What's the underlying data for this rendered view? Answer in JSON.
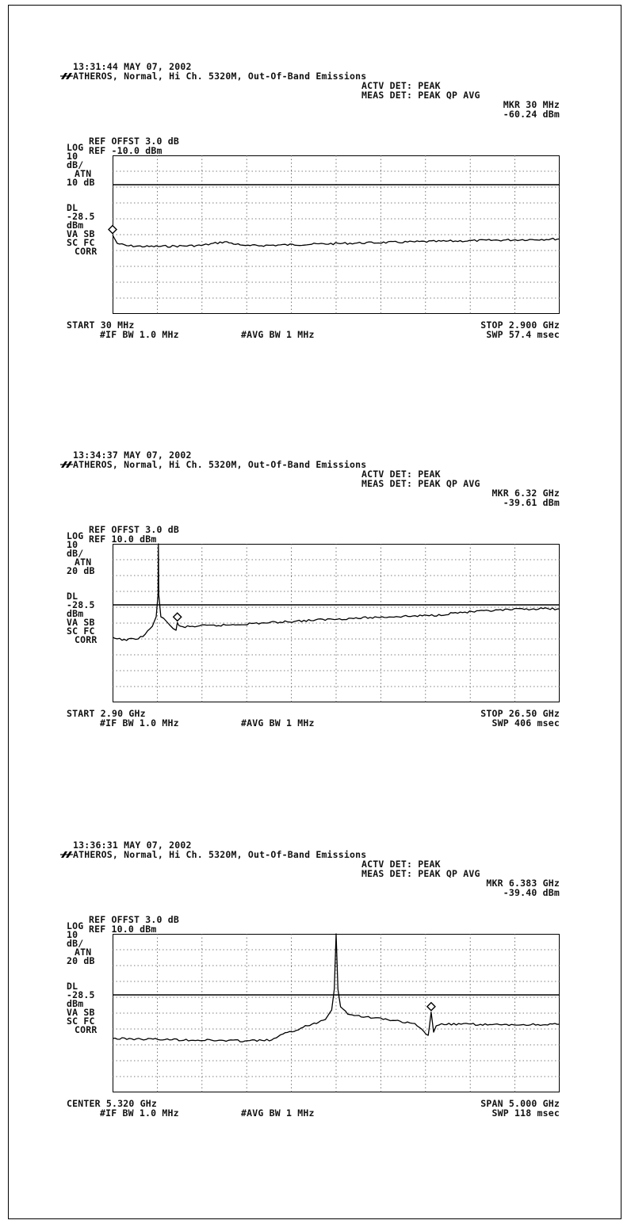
{
  "chart_data": [
    {
      "type": "line",
      "timestamp": "13:31:44 MAY 07, 2002",
      "title": "ATHEROS, Normal, Hi Ch. 5320M, Out-Of-Band Emissions",
      "actv_det": "ACTV DET: PEAK",
      "meas_det": "MEAS DET: PEAK QP AVG",
      "marker_freq": "MKR 30 MHz",
      "marker_level": "-60.24 dBm",
      "ref_offset": "REF OFFST 3.0 dB",
      "ref_level": "REF -10.0 dBm",
      "left_labels": [
        "LOG",
        "10",
        "dB/",
        "ATN",
        "10 dB",
        "DL",
        "-28.5",
        "dBm",
        "VA SB",
        "SC FC",
        "CORR"
      ],
      "x_start_label": "START 30 MHz",
      "x_stop_label": "STOP 2.900 GHz",
      "if_bw": "#IF BW 1.0 MHz",
      "avg_bw": "#AVG BW 1 MHz",
      "sweep": "SWP 57.4 msec",
      "ref_dbm": -10,
      "db_per_div": 10,
      "display_line_dbm": -28.5,
      "x_range_mhz": [
        30,
        2900
      ],
      "grid": true,
      "marker": {
        "x_mhz": 30,
        "y_dbm": -60.24
      },
      "series": [
        {
          "x": [
            30,
            60,
            120,
            250,
            400,
            600,
            750,
            850,
            900,
            1000,
            1200,
            1400,
            1600,
            1800,
            2000,
            2200,
            2400,
            2600,
            2800,
            2900
          ],
          "y": [
            -60.2,
            -65.5,
            -67.0,
            -67.5,
            -67.3,
            -66.8,
            -64.5,
            -66.5,
            -67.0,
            -66.8,
            -66.3,
            -65.8,
            -65.3,
            -64.9,
            -64.5,
            -64.1,
            -63.7,
            -63.3,
            -62.9,
            -62.7
          ]
        }
      ]
    },
    {
      "type": "line",
      "timestamp": "13:34:37 MAY 07, 2002",
      "title": "ATHEROS, Normal, Hi Ch. 5320M, Out-Of-Band Emissions",
      "actv_det": "ACTV DET: PEAK",
      "meas_det": "MEAS DET: PEAK QP AVG",
      "marker_freq": "MKR 6.32 GHz",
      "marker_level": "-39.61 dBm",
      "ref_offset": "REF OFFST 3.0 dB",
      "ref_level": "REF 10.0 dBm",
      "left_labels": [
        "LOG",
        "10",
        "dB/",
        "ATN",
        "20 dB",
        "DL",
        "-28.5",
        "dBm",
        "VA SB",
        "SC FC",
        "CORR"
      ],
      "x_start_label": "START 2.90 GHz",
      "x_stop_label": "STOP 26.50 GHz",
      "if_bw": "#IF BW 1.0 MHz",
      "avg_bw": "#AVG BW 1 MHz",
      "sweep": "SWP 406 msec",
      "ref_dbm": 10,
      "db_per_div": 10,
      "display_line_dbm": -28.5,
      "x_range_ghz": [
        2.9,
        26.5
      ],
      "grid": true,
      "marker": {
        "x_ghz": 6.32,
        "y_dbm": -39.61
      },
      "series": [
        {
          "x": [
            2.9,
            3.4,
            4.0,
            4.5,
            5.0,
            5.2,
            5.3,
            5.32,
            5.34,
            5.45,
            5.6,
            5.9,
            6.1,
            6.25,
            6.32,
            6.4,
            6.6,
            7.5,
            8.5,
            10.0,
            11.5,
            13.0,
            14.5,
            16.0,
            17.5,
            19.0,
            20.0,
            21.0,
            22.5,
            24.0,
            25.0,
            26.5
          ],
          "y": [
            -49.5,
            -50.5,
            -50.2,
            -48.5,
            -42.0,
            -36.0,
            -22.0,
            10.0,
            -22.0,
            -36.0,
            -37.0,
            -41.0,
            -43.5,
            -44.5,
            -39.61,
            -41.5,
            -42.5,
            -41.8,
            -41.5,
            -40.5,
            -39.5,
            -38.5,
            -37.5,
            -36.8,
            -36.0,
            -35.5,
            -35.0,
            -33.5,
            -32.5,
            -31.5,
            -31.0,
            -31.0
          ]
        }
      ]
    },
    {
      "type": "line",
      "timestamp": "13:36:31 MAY 07, 2002",
      "title": "ATHEROS, Normal, Hi Ch. 5320M, Out-Of-Band Emissions",
      "actv_det": "ACTV DET: PEAK",
      "meas_det": "MEAS DET: PEAK QP AVG",
      "marker_freq": "MKR 6.383 GHz",
      "marker_level": "-39.40 dBm",
      "ref_offset": "REF OFFST 3.0 dB",
      "ref_level": "REF 10.0 dBm",
      "left_labels": [
        "LOG",
        "10",
        "dB/",
        "ATN",
        "20 dB",
        "DL",
        "-28.5",
        "dBm",
        "VA SB",
        "SC FC",
        "CORR"
      ],
      "x_start_label": "CENTER 5.320 GHz",
      "x_stop_label": "SPAN 5.000 GHz",
      "if_bw": "#IF BW 1.0 MHz",
      "avg_bw": "#AVG BW 1 MHz",
      "sweep": "SWP 118 msec",
      "ref_dbm": 10,
      "db_per_div": 10,
      "display_line_dbm": -28.5,
      "x_range_ghz": [
        2.82,
        7.82
      ],
      "grid": true,
      "marker": {
        "x_ghz": 6.383,
        "y_dbm": -39.4
      },
      "series": [
        {
          "x": [
            2.82,
            3.3,
            3.8,
            4.3,
            4.6,
            4.7,
            4.9,
            5.1,
            5.2,
            5.27,
            5.3,
            5.32,
            5.34,
            5.37,
            5.45,
            5.6,
            5.9,
            6.2,
            6.35,
            6.36,
            6.383,
            6.41,
            6.44,
            6.5,
            6.8,
            7.2,
            7.82
          ],
          "y": [
            -56.0,
            -56.5,
            -57.0,
            -57.5,
            -57.0,
            -54.0,
            -50.0,
            -46.0,
            -44.0,
            -38.0,
            -25.0,
            10.0,
            -25.0,
            -36.0,
            -40.0,
            -42.0,
            -44.0,
            -47.0,
            -54.0,
            -50.0,
            -39.4,
            -52.0,
            -48.0,
            -47.0,
            -47.0,
            -47.5,
            -47.0
          ]
        }
      ]
    }
  ]
}
